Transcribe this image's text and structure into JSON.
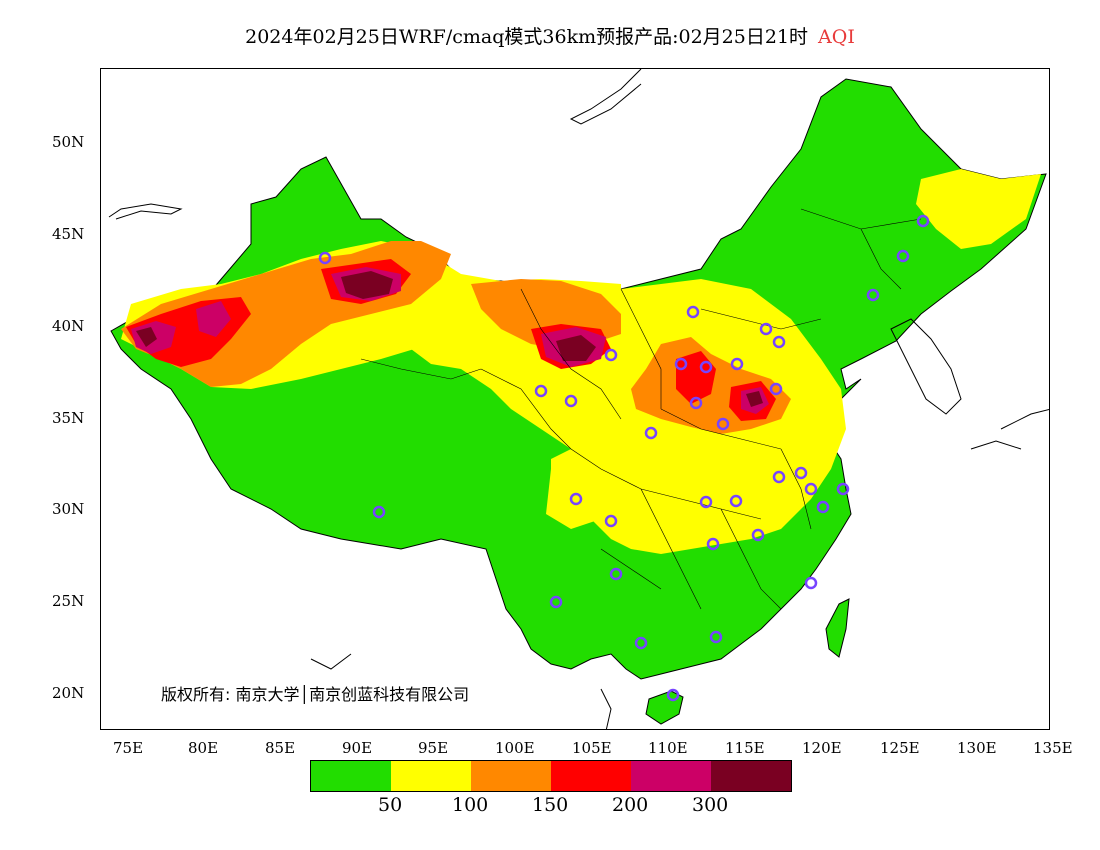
{
  "title": {
    "main": "2024年02月25日WRF/cmaq模式36km预报产品:02月25日21时",
    "variable": "AQI",
    "variable_color": "#e83b3b"
  },
  "map": {
    "lon_range": [
      73,
      135
    ],
    "lat_range": [
      18,
      54
    ],
    "lon_ticks": [
      "75E",
      "80E",
      "85E",
      "90E",
      "95E",
      "100E",
      "105E",
      "110E",
      "115E",
      "120E",
      "125E",
      "130E",
      "135E"
    ],
    "lat_ticks": [
      "50N",
      "45N",
      "40N",
      "35N",
      "30N",
      "25N",
      "20N"
    ],
    "copyright": "版权所有: 南京大学│南京创蓝科技有限公司"
  },
  "legend": {
    "colors": [
      "#22dd00",
      "#ffff00",
      "#ff8800",
      "#ff0000",
      "#cc0066",
      "#7a0022"
    ],
    "labels": [
      "50",
      "100",
      "150",
      "200",
      "300"
    ]
  },
  "colors": {
    "good": "#22dd00",
    "moderate": "#ffff00",
    "usg": "#ff8800",
    "unhealthy": "#ff0000",
    "very_unhealthy": "#cc0066",
    "hazardous": "#7a0022",
    "station_marker": "#7744ff"
  }
}
